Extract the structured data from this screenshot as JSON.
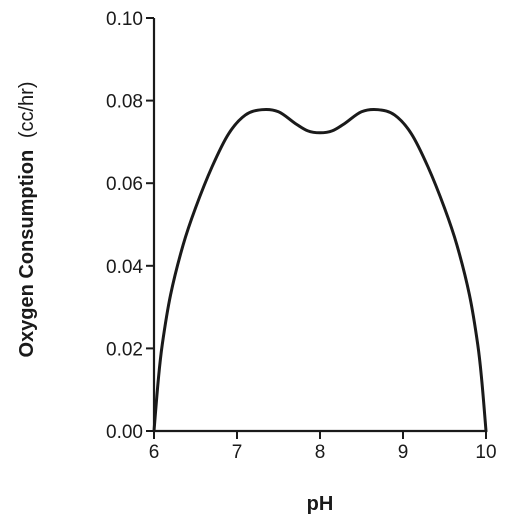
{
  "chart_data": {
    "type": "line",
    "title": "",
    "xlabel": "pH",
    "ylabel": "Oxygen Consumption",
    "ylabel_unit": "(cc/hr)",
    "xlim": [
      6,
      10
    ],
    "ylim": [
      0,
      0.1
    ],
    "x_ticks": [
      6,
      7,
      8,
      9,
      10
    ],
    "x_tick_labels": [
      "6",
      "7",
      "8",
      "9",
      "10"
    ],
    "y_ticks": [
      0,
      0.02,
      0.04,
      0.06,
      0.08,
      0.1
    ],
    "y_tick_labels": [
      "0.00",
      "0.02",
      "0.04",
      "0.06",
      "0.08",
      "0.10"
    ],
    "grid": false,
    "legend": "none",
    "colors": {
      "line": "#1a1a1a",
      "axis": "#1a1a1a"
    },
    "series": [
      {
        "x": [
          6.0,
          6.05,
          6.1,
          6.2,
          6.35,
          6.5,
          6.7,
          6.9,
          7.1,
          7.3,
          7.5,
          7.7,
          7.85,
          8.0,
          8.15,
          8.3,
          8.5,
          8.7,
          8.9,
          9.1,
          9.3,
          9.5,
          9.65,
          9.8,
          9.9,
          9.95,
          10.0
        ],
        "y": [
          0.0,
          0.012,
          0.021,
          0.033,
          0.045,
          0.054,
          0.064,
          0.072,
          0.0765,
          0.0778,
          0.0773,
          0.0745,
          0.0727,
          0.0722,
          0.0727,
          0.0745,
          0.0773,
          0.0778,
          0.0765,
          0.072,
          0.064,
          0.054,
          0.045,
          0.033,
          0.021,
          0.012,
          0.0
        ]
      }
    ]
  }
}
